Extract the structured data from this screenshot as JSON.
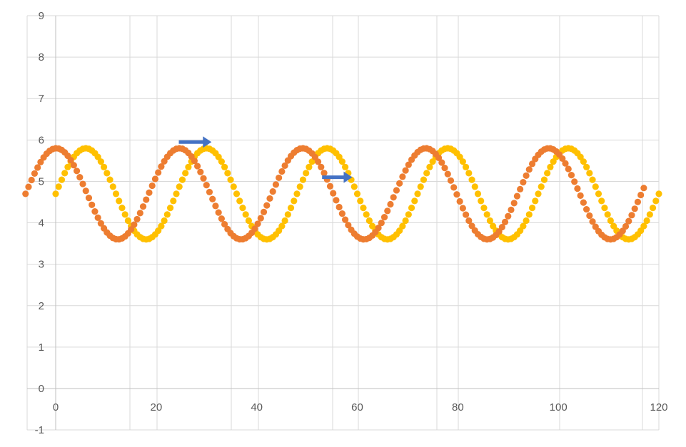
{
  "chart_data": {
    "type": "scatter",
    "xlim": [
      -6,
      120
    ],
    "ylim": [
      -1,
      9
    ],
    "x_ticks": [
      "0",
      "20",
      "40",
      "60",
      "80",
      "100",
      "120"
    ],
    "y_ticks": [
      "-1",
      "0",
      "1",
      "2",
      "3",
      "4",
      "5",
      "6",
      "7",
      "8",
      "9"
    ],
    "grid": true,
    "colors": {
      "yellow_series": "#FFC000",
      "orange_series": "#ED7D31",
      "arrow": "#4472C4",
      "grid": "#D9D9D9"
    },
    "series": [
      {
        "color": "#FFC000",
        "model": "y = 4.7 + 1.1*sin(2*pi*(x - 0)/24)",
        "x_range": [
          0,
          120
        ],
        "step": 0.6
      },
      {
        "color": "#ED7D31",
        "model": "y = 4.7 + 1.1*sin(2*pi*(x + 6)/24.5)",
        "x_range": [
          -6,
          117
        ],
        "step": 0.6
      }
    ],
    "annotations": [
      {
        "type": "arrow",
        "direction": "right",
        "x_start": 24.5,
        "x_end": 31,
        "y": 5.95
      },
      {
        "type": "arrow",
        "direction": "right",
        "x_start": 53,
        "x_end": 59,
        "y": 5.1
      }
    ]
  }
}
